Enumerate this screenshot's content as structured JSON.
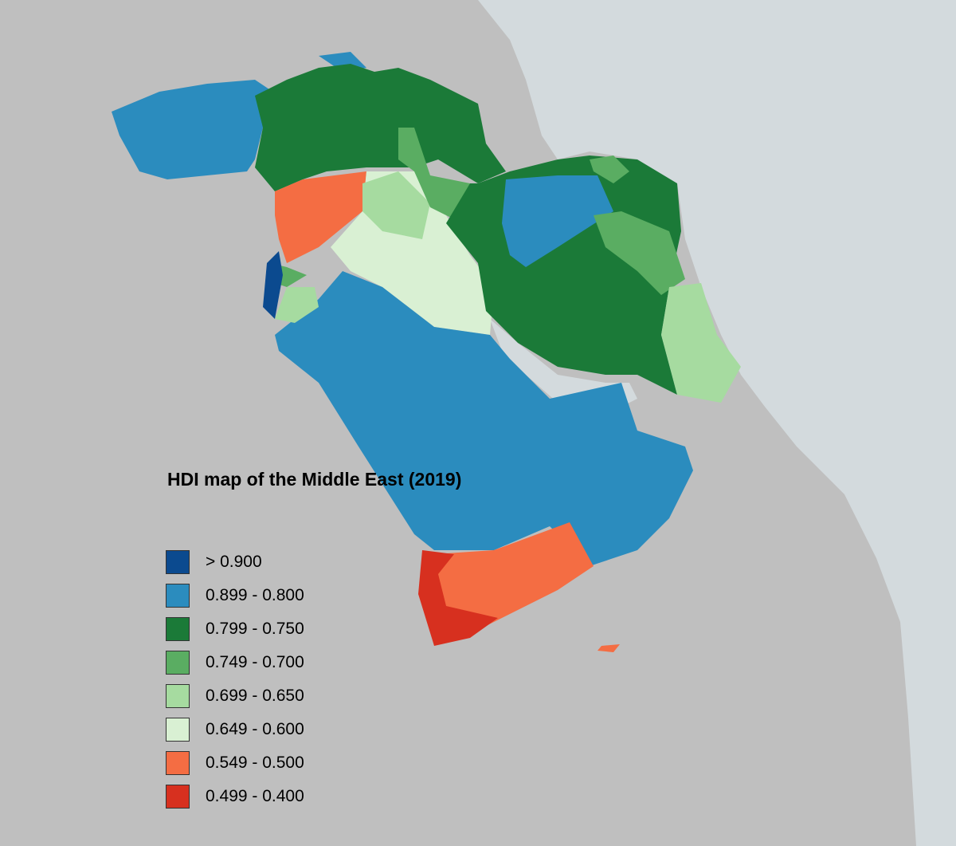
{
  "title": "HDI map of the Middle East (2019)",
  "legend": {
    "items": [
      {
        "label": "> 0.900",
        "color": "#0b4a8f"
      },
      {
        "label": "0.899 - 0.800",
        "color": "#2b8cbe"
      },
      {
        "label": "0.799 - 0.750",
        "color": "#1b7a38"
      },
      {
        "label": "0.749 - 0.700",
        "color": "#5aad62"
      },
      {
        "label": "0.699 - 0.650",
        "color": "#a6dba0"
      },
      {
        "label": "0.649 - 0.600",
        "color": "#d9f0d3"
      },
      {
        "label": "0.549 - 0.500",
        "color": "#f46d43"
      },
      {
        "label": "0.499 - 0.400",
        "color": "#d7301f"
      }
    ]
  }
}
